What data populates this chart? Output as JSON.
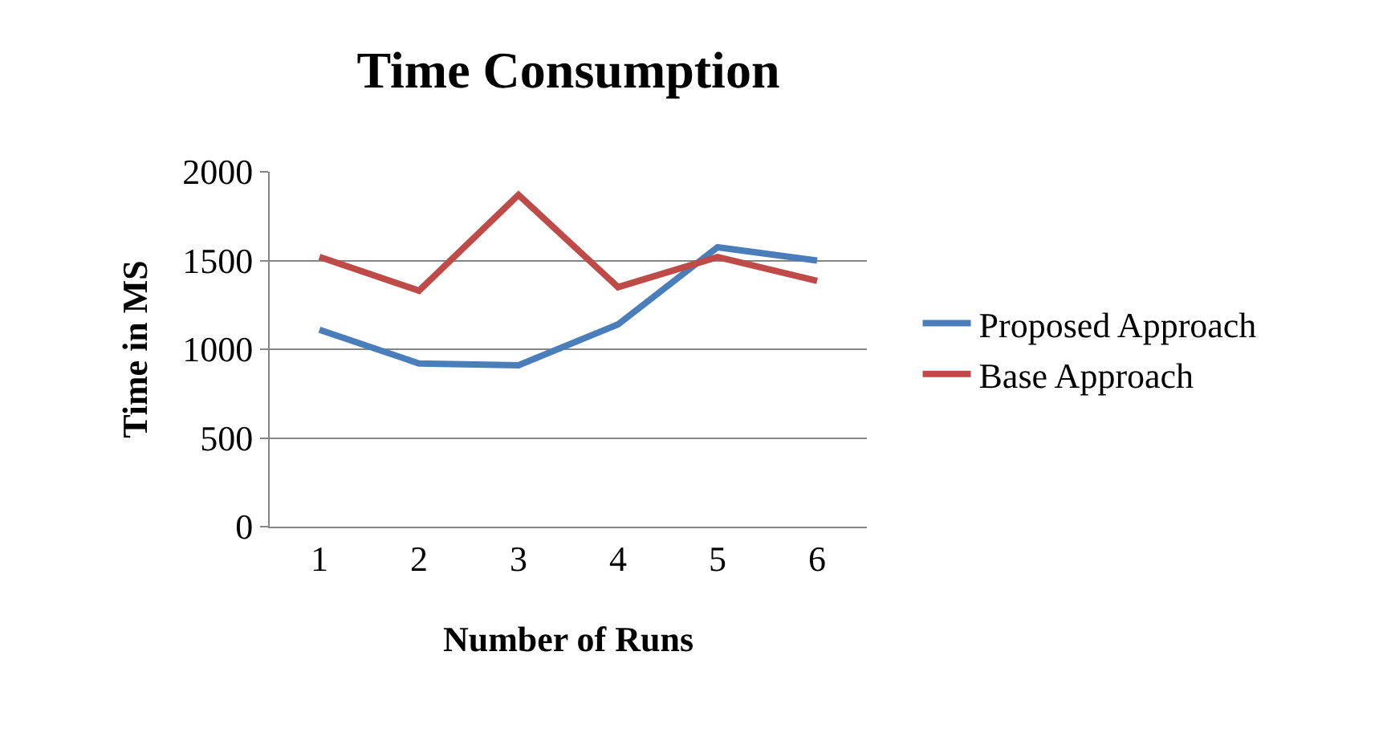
{
  "chart_data": {
    "type": "line",
    "title": "Time Consumption",
    "xlabel": "Number of Runs",
    "ylabel": "Time in MS",
    "categories": [
      "1",
      "2",
      "3",
      "4",
      "5",
      "6"
    ],
    "series": [
      {
        "name": "Proposed Approach",
        "color": "#4a7ebb",
        "values": [
          1110,
          920,
          910,
          1140,
          1575,
          1500
        ]
      },
      {
        "name": "Base Approach",
        "color": "#be4b48",
        "values": [
          1520,
          1330,
          1870,
          1350,
          1520,
          1385
        ]
      }
    ],
    "ylim": [
      0,
      2000
    ],
    "yticks": [
      0,
      500,
      1000,
      1500,
      2000
    ],
    "grid": "y",
    "legend": "right",
    "marker": "none",
    "line_style": "solid"
  }
}
